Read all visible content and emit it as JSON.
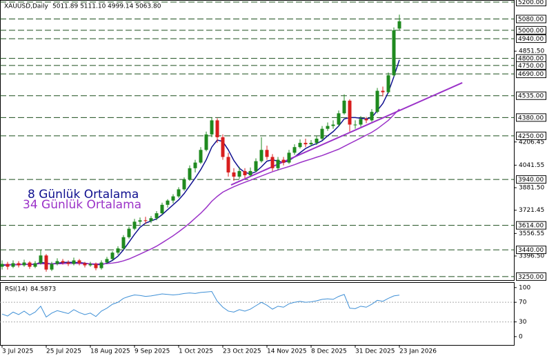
{
  "chart_data": [
    {
      "type": "candlestick",
      "title": "XAUUSD,Daily",
      "subtitle": "5011.89 5111.10 4999.14 5063.80",
      "categories": [
        "3 Jul 2025",
        null,
        null,
        null,
        null,
        null,
        null,
        null,
        "25 Jul 2025",
        null,
        null,
        null,
        null,
        null,
        null,
        null,
        "18 Aug 2025",
        null,
        null,
        null,
        null,
        null,
        null,
        null,
        "9 Sep 2025",
        null,
        null,
        null,
        null,
        null,
        null,
        null,
        "1 Oct 2025",
        null,
        null,
        null,
        null,
        null,
        null,
        null,
        "23 Oct 2025",
        null,
        null,
        null,
        null,
        null,
        null,
        null,
        "14 Nov 2025",
        null,
        null,
        null,
        null,
        null,
        null,
        null,
        "8 Dec 2025",
        null,
        null,
        null,
        null,
        null,
        null,
        null,
        "31 Dec 2025",
        null,
        null,
        null,
        null,
        null,
        null,
        null,
        "23 Jan 2026"
      ],
      "open": [
        3320,
        3340,
        3320,
        3345,
        3330,
        3350,
        3320,
        3345,
        3400,
        3300,
        3340,
        3360,
        3350,
        3340,
        3365,
        3345,
        3330,
        3340,
        3310,
        3350,
        3375,
        3420,
        3450,
        3530,
        3590,
        3640,
        3650,
        3645,
        3665,
        3700,
        3760,
        3790,
        3820,
        3870,
        3940,
        4020,
        4060,
        4150,
        4260,
        4360,
        4240,
        4100,
        3990,
        3960,
        4000,
        3970,
        4000,
        4070,
        4150,
        4100,
        4020,
        4080,
        4060,
        4130,
        4170,
        4200,
        4190,
        4200,
        4230,
        4300,
        4320,
        4330,
        4410,
        4500,
        4330,
        4330,
        4370,
        4360,
        4420,
        4570,
        4560,
        4680,
        5011.89
      ],
      "high": [
        3365,
        3355,
        3365,
        3360,
        3370,
        3360,
        3360,
        3440,
        3410,
        3355,
        3380,
        3375,
        3365,
        3385,
        3375,
        3355,
        3355,
        3350,
        3365,
        3390,
        3430,
        3465,
        3545,
        3605,
        3660,
        3670,
        3675,
        3680,
        3715,
        3775,
        3800,
        3835,
        3885,
        3955,
        4040,
        4080,
        4170,
        4280,
        4380,
        4375,
        4260,
        4130,
        4020,
        4030,
        4020,
        4025,
        4090,
        4240,
        4180,
        4120,
        4100,
        4100,
        4150,
        4190,
        4225,
        4230,
        4220,
        4250,
        4320,
        4345,
        4360,
        4430,
        4545,
        4510,
        4360,
        4390,
        4385,
        4440,
        4590,
        4600,
        4700,
        5020,
        5111.1
      ],
      "low": [
        3300,
        3300,
        3310,
        3315,
        3320,
        3305,
        3310,
        3335,
        3285,
        3290,
        3330,
        3335,
        3325,
        3330,
        3330,
        3315,
        3320,
        3295,
        3300,
        3340,
        3365,
        3405,
        3440,
        3520,
        3580,
        3620,
        3625,
        3630,
        3650,
        3690,
        3740,
        3770,
        3810,
        3860,
        3930,
        3990,
        4050,
        4140,
        4240,
        4200,
        4080,
        3960,
        3930,
        3945,
        3950,
        3960,
        3990,
        4060,
        4080,
        4000,
        4005,
        4040,
        4050,
        4115,
        4160,
        4170,
        4175,
        4185,
        4220,
        4285,
        4300,
        4320,
        4400,
        4280,
        4300,
        4315,
        4340,
        4350,
        4410,
        4530,
        4550,
        4670,
        4999.14
      ],
      "close": [
        3340,
        3320,
        3345,
        3330,
        3350,
        3320,
        3345,
        3400,
        3300,
        3340,
        3360,
        3350,
        3340,
        3365,
        3345,
        3330,
        3340,
        3310,
        3350,
        3375,
        3420,
        3450,
        3530,
        3590,
        3640,
        3650,
        3645,
        3665,
        3700,
        3760,
        3790,
        3820,
        3870,
        3940,
        4020,
        4060,
        4150,
        4260,
        4360,
        4240,
        4100,
        3990,
        3960,
        4000,
        3970,
        4000,
        4070,
        4150,
        4100,
        4020,
        4080,
        4060,
        4130,
        4170,
        4200,
        4190,
        4200,
        4230,
        4300,
        4320,
        4330,
        4410,
        4500,
        4330,
        4330,
        4370,
        4360,
        4420,
        4570,
        4560,
        4680,
        5000,
        5063.8
      ],
      "up_color": "#1f8a1f",
      "down_color": "#d81e1e",
      "series": [
        {
          "name": "8 Günlük Ortalama",
          "color": "#0f0f8f",
          "values": [
            3330,
            3332,
            3335,
            3334,
            3338,
            3335,
            3337,
            3352,
            3345,
            3340,
            3345,
            3350,
            3352,
            3350,
            3350,
            3345,
            3340,
            3335,
            3335,
            3345,
            3365,
            3395,
            3440,
            3495,
            3550,
            3600,
            3630,
            3645,
            3660,
            3690,
            3725,
            3760,
            3795,
            3840,
            3895,
            3950,
            4010,
            4080,
            4170,
            4220,
            4210,
            4150,
            4075,
            4020,
            3990,
            3980,
            3995,
            4030,
            4070,
            4080,
            4070,
            4060,
            4075,
            4100,
            4130,
            4160,
            4180,
            4195,
            4215,
            4250,
            4280,
            4320,
            4370,
            4380,
            4380,
            4375,
            4370,
            4380,
            4430,
            4480,
            4560,
            4670,
            4790
          ]
        },
        {
          "name": "34 Günlük Ortalama",
          "color": "#9b32c8",
          "values": [
            3335,
            3335,
            3336,
            3337,
            3338,
            3338,
            3339,
            3342,
            3340,
            3340,
            3341,
            3342,
            3343,
            3343,
            3343,
            3342,
            3341,
            3340,
            3340,
            3342,
            3346,
            3352,
            3362,
            3375,
            3392,
            3410,
            3428,
            3446,
            3466,
            3490,
            3515,
            3540,
            3568,
            3598,
            3630,
            3665,
            3700,
            3740,
            3785,
            3820,
            3850,
            3870,
            3888,
            3905,
            3920,
            3935,
            3950,
            3965,
            3980,
            3995,
            4008,
            4020,
            4032,
            4045,
            4060,
            4073,
            4085,
            4098,
            4110,
            4125,
            4140,
            4155,
            4175,
            4195,
            4215,
            4235,
            4255,
            4275,
            4300,
            4330,
            4360,
            4400,
            4440
          ]
        }
      ],
      "trendline": {
        "color": "#9b32c8",
        "start": [
          41.5,
          3901
        ],
        "end": [
          83.4,
          4627
        ]
      },
      "ylim": [
        3225,
        5215
      ],
      "yticks": [
        {
          "value": 4851.5,
          "label": "4851.50"
        },
        {
          "value": 4206.45,
          "label": "4206.45"
        },
        {
          "value": 4041.55,
          "label": "4041.55"
        },
        {
          "value": 3881.5,
          "label": "3881.50"
        },
        {
          "value": 3721.45,
          "label": "3721.45"
        },
        {
          "value": 3556.55,
          "label": "3556.55"
        },
        {
          "value": 3396.5,
          "label": "3396.50"
        }
      ],
      "levels": [
        {
          "value": 5200,
          "label": "5200.00"
        },
        {
          "value": 5080,
          "label": "5080.00"
        },
        {
          "value": 5000,
          "label": "5000.00"
        },
        {
          "value": 4940,
          "label": "4940.00"
        },
        {
          "value": 4800,
          "label": "4800.00"
        },
        {
          "value": 4750,
          "label": "4750.00"
        },
        {
          "value": 4690,
          "label": "4690.00"
        },
        {
          "value": 4535,
          "label": "4535.00"
        },
        {
          "value": 4380,
          "label": "4380.00"
        },
        {
          "value": 4250,
          "label": "4250.00"
        },
        {
          "value": 3940,
          "label": "3940.00"
        },
        {
          "value": 3614,
          "label": "3614.00"
        },
        {
          "value": 3440,
          "label": "3440.00"
        },
        {
          "value": 3250,
          "label": "3250.00"
        }
      ],
      "level_color": "#1b4d1b"
    },
    {
      "type": "line",
      "title": "RSI(14)",
      "color": "#3d8fd6",
      "values": [
        46,
        42,
        50,
        45,
        52,
        44,
        50,
        62,
        40,
        48,
        53,
        50,
        47,
        55,
        49,
        45,
        48,
        41,
        52,
        58,
        66,
        70,
        78,
        82,
        85,
        84,
        82,
        83,
        85,
        87,
        86,
        85,
        86,
        88,
        89,
        88,
        90,
        91,
        92,
        72,
        60,
        52,
        50,
        55,
        52,
        56,
        63,
        70,
        64,
        56,
        62,
        60,
        67,
        70,
        72,
        70,
        71,
        73,
        76,
        77,
        76,
        82,
        86,
        58,
        57,
        62,
        60,
        66,
        74,
        72,
        78,
        83,
        84.5873
      ],
      "ylim": [
        -17,
        111
      ],
      "yticks": [
        100,
        70,
        30,
        0
      ],
      "levels": [
        70,
        30
      ],
      "level_color": "#aaaaaa"
    }
  ]
}
